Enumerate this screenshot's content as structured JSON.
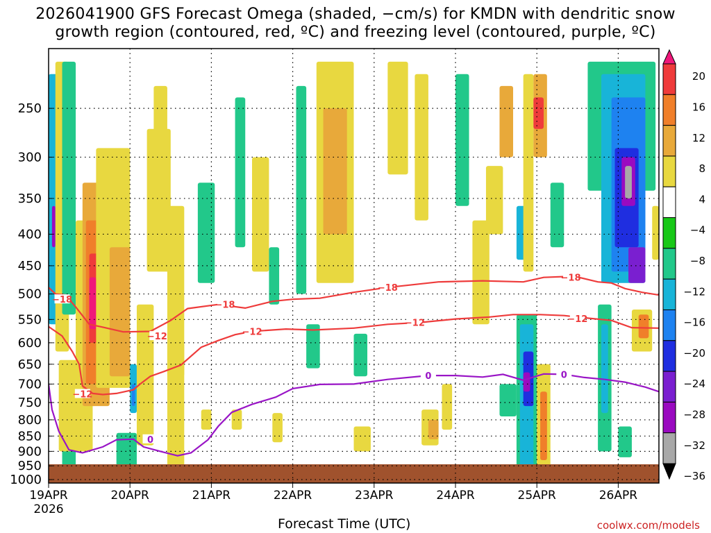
{
  "title_line1": "2026041900 GFS Forecast Omega (shaded, −cm/s) for KMDN with dendritic snow",
  "title_line2": "growth region (contoured, red, ºC) and freezing level (contoured, purple, ºC)",
  "x_axis_title": "Forecast Time (UTC)",
  "credit": "coolwx.com/models",
  "chart_data": {
    "type": "heatmap",
    "title": "2026041900 GFS Forecast Omega (shaded, −cm/s) for KMDN with dendritic snow growth region (contoured, red, ºC) and freezing level (contoured, purple, ºC)",
    "xlabel": "Forecast Time (UTC)",
    "ylabel": "",
    "x_ticks": [
      "19APR",
      "20APR",
      "21APR",
      "22APR",
      "23APR",
      "24APR",
      "25APR",
      "26APR"
    ],
    "x_year_label": "2026",
    "x_range_hours": [
      0,
      180
    ],
    "y_ticks_hPa": [
      250,
      300,
      350,
      400,
      450,
      500,
      550,
      600,
      650,
      700,
      750,
      800,
      850,
      900,
      950,
      1000
    ],
    "y_range_hPa": [
      200,
      1013
    ],
    "y_scale": "log",
    "grid": true,
    "colorbar": {
      "labels": [
        "20",
        "16",
        "12",
        "8",
        "4",
        "−4",
        "−8",
        "−12",
        "−16",
        "−20",
        "−24",
        "−28",
        "−32",
        "−36"
      ],
      "colors": [
        "#f0177a",
        "#ef3b3b",
        "#f07f2a",
        "#e8a93a",
        "#e8d840",
        "#ffffff",
        "#18c818",
        "#22c88a",
        "#18b4d8",
        "#1e82f0",
        "#1f2ee0",
        "#7a1fd0",
        "#9a0ac0",
        "#a8a8a8",
        "#000000"
      ]
    },
    "contour_labels": {
      "dendritic": [
        "−18",
        "−12"
      ],
      "freezing": [
        "0"
      ]
    },
    "contours": [
      {
        "name": "−18",
        "color": "#ee3b3b",
        "points": [
          [
            0,
            488
          ],
          [
            2,
            500
          ],
          [
            5,
            502
          ],
          [
            8,
            525
          ],
          [
            12,
            560
          ],
          [
            16,
            566
          ],
          [
            22,
            576
          ],
          [
            30,
            575
          ],
          [
            36,
            552
          ],
          [
            41,
            528
          ],
          [
            50,
            520
          ],
          [
            58,
            527
          ],
          [
            66,
            514
          ],
          [
            72,
            510
          ],
          [
            80,
            508
          ],
          [
            90,
            497
          ],
          [
            100,
            488
          ],
          [
            115,
            478
          ],
          [
            128,
            476
          ],
          [
            140,
            478
          ],
          [
            146,
            470
          ],
          [
            155,
            468
          ],
          [
            162,
            478
          ],
          [
            166,
            480
          ],
          [
            170,
            490
          ],
          [
            175,
            497
          ],
          [
            180,
            502
          ]
        ]
      },
      {
        "name": "−12",
        "color": "#ee3b3b",
        "points": [
          [
            0,
            565
          ],
          [
            4,
            585
          ],
          [
            7,
            620
          ],
          [
            9,
            650
          ],
          [
            10,
            705
          ],
          [
            13,
            725
          ],
          [
            16,
            728
          ],
          [
            20,
            725
          ],
          [
            25,
            715
          ],
          [
            27,
            700
          ],
          [
            30,
            680
          ],
          [
            34,
            668
          ],
          [
            39,
            652
          ],
          [
            45,
            610
          ],
          [
            50,
            595
          ],
          [
            55,
            582
          ],
          [
            60,
            575
          ],
          [
            70,
            570
          ],
          [
            78,
            572
          ],
          [
            90,
            568
          ],
          [
            100,
            560
          ],
          [
            110,
            556
          ],
          [
            120,
            549
          ],
          [
            130,
            545
          ],
          [
            137,
            540
          ],
          [
            145,
            540
          ],
          [
            152,
            542
          ],
          [
            160,
            548
          ],
          [
            166,
            552
          ],
          [
            172,
            567
          ],
          [
            180,
            568
          ]
        ]
      },
      {
        "name": "0",
        "color": "#9915c6",
        "points": [
          [
            0,
            700
          ],
          [
            1,
            770
          ],
          [
            3,
            835
          ],
          [
            6,
            895
          ],
          [
            10,
            905
          ],
          [
            16,
            885
          ],
          [
            20,
            862
          ],
          [
            25,
            860
          ],
          [
            28,
            885
          ],
          [
            33,
            900
          ],
          [
            38,
            915
          ],
          [
            42,
            905
          ],
          [
            47,
            862
          ],
          [
            50,
            820
          ],
          [
            54,
            778
          ],
          [
            60,
            755
          ],
          [
            67,
            735
          ],
          [
            72,
            712
          ],
          [
            80,
            701
          ],
          [
            90,
            700
          ],
          [
            100,
            688
          ],
          [
            112,
            678
          ],
          [
            120,
            678
          ],
          [
            128,
            682
          ],
          [
            134,
            675
          ],
          [
            140,
            690
          ],
          [
            146,
            674
          ],
          [
            152,
            675
          ],
          [
            158,
            683
          ],
          [
            164,
            688
          ],
          [
            170,
            695
          ],
          [
            176,
            708
          ],
          [
            180,
            720
          ]
        ]
      }
    ],
    "shaded_regions": [
      {
        "t": [
          0,
          3
        ],
        "p": [
          220,
          560
        ],
        "omega": -12
      },
      {
        "t": [
          1,
          2
        ],
        "p": [
          360,
          420
        ],
        "omega": -30
      },
      {
        "t": [
          2,
          6
        ],
        "p": [
          210,
          620
        ],
        "omega": 4
      },
      {
        "t": [
          4,
          8
        ],
        "p": [
          210,
          540
        ],
        "omega": -8
      },
      {
        "t": [
          4,
          8
        ],
        "p": [
          820,
          960
        ],
        "omega": -8
      },
      {
        "t": [
          3,
          13
        ],
        "p": [
          640,
          900
        ],
        "omega": 4
      },
      {
        "t": [
          8,
          14
        ],
        "p": [
          380,
          760
        ],
        "omega": 4
      },
      {
        "t": [
          10,
          18
        ],
        "p": [
          330,
          760
        ],
        "omega": 8
      },
      {
        "t": [
          11,
          16
        ],
        "p": [
          380,
          700
        ],
        "omega": 12
      },
      {
        "t": [
          12,
          15
        ],
        "p": [
          430,
          600
        ],
        "omega": 16
      },
      {
        "t": [
          12,
          14
        ],
        "p": [
          470,
          570
        ],
        "omega": 20
      },
      {
        "t": [
          14,
          24
        ],
        "p": [
          290,
          710
        ],
        "omega": 4
      },
      {
        "t": [
          18,
          24
        ],
        "p": [
          420,
          680
        ],
        "omega": 8
      },
      {
        "t": [
          20,
          26
        ],
        "p": [
          840,
          960
        ],
        "omega": -8
      },
      {
        "t": [
          24,
          26
        ],
        "p": [
          650,
          780
        ],
        "omega": -12
      },
      {
        "t": [
          24.5,
          25.5
        ],
        "p": [
          700,
          760
        ],
        "omega": -16
      },
      {
        "t": [
          26,
          31
        ],
        "p": [
          520,
          880
        ],
        "omega": 4
      },
      {
        "t": [
          29,
          36
        ],
        "p": [
          270,
          460
        ],
        "omega": 4
      },
      {
        "t": [
          31,
          35
        ],
        "p": [
          230,
          330
        ],
        "omega": 4
      },
      {
        "t": [
          35,
          40
        ],
        "p": [
          360,
          680
        ],
        "omega": 4
      },
      {
        "t": [
          35,
          40
        ],
        "p": [
          600,
          960
        ],
        "omega": 4
      },
      {
        "t": [
          44,
          49
        ],
        "p": [
          330,
          480
        ],
        "omega": -8
      },
      {
        "t": [
          45,
          48
        ],
        "p": [
          770,
          830
        ],
        "omega": 4
      },
      {
        "t": [
          55,
          58
        ],
        "p": [
          240,
          420
        ],
        "omega": -8
      },
      {
        "t": [
          54,
          57
        ],
        "p": [
          770,
          830
        ],
        "omega": 4
      },
      {
        "t": [
          60,
          65
        ],
        "p": [
          300,
          460
        ],
        "omega": 4
      },
      {
        "t": [
          65,
          68
        ],
        "p": [
          420,
          520
        ],
        "omega": -8
      },
      {
        "t": [
          66,
          69
        ],
        "p": [
          780,
          870
        ],
        "omega": 4
      },
      {
        "t": [
          73,
          76
        ],
        "p": [
          230,
          500
        ],
        "omega": -8
      },
      {
        "t": [
          76,
          80
        ],
        "p": [
          560,
          660
        ],
        "omega": -8
      },
      {
        "t": [
          79,
          90
        ],
        "p": [
          210,
          480
        ],
        "omega": 4
      },
      {
        "t": [
          81,
          88
        ],
        "p": [
          250,
          400
        ],
        "omega": 8
      },
      {
        "t": [
          90,
          94
        ],
        "p": [
          580,
          680
        ],
        "omega": -8
      },
      {
        "t": [
          90,
          95
        ],
        "p": [
          820,
          900
        ],
        "omega": 4
      },
      {
        "t": [
          100,
          106
        ],
        "p": [
          210,
          320
        ],
        "omega": 4
      },
      {
        "t": [
          108,
          112
        ],
        "p": [
          220,
          380
        ],
        "omega": 4
      },
      {
        "t": [
          110,
          115
        ],
        "p": [
          770,
          880
        ],
        "omega": 4
      },
      {
        "t": [
          112,
          115
        ],
        "p": [
          800,
          860
        ],
        "omega": 8
      },
      {
        "t": [
          116,
          119
        ],
        "p": [
          700,
          830
        ],
        "omega": 4
      },
      {
        "t": [
          120,
          124
        ],
        "p": [
          220,
          360
        ],
        "omega": -8
      },
      {
        "t": [
          125,
          130
        ],
        "p": [
          380,
          560
        ],
        "omega": 4
      },
      {
        "t": [
          129,
          134
        ],
        "p": [
          310,
          400
        ],
        "omega": 4
      },
      {
        "t": [
          133,
          137
        ],
        "p": [
          230,
          300
        ],
        "omega": 8
      },
      {
        "t": [
          133,
          138
        ],
        "p": [
          700,
          790
        ],
        "omega": -8
      },
      {
        "t": [
          138,
          144
        ],
        "p": [
          540,
          960
        ],
        "omega": -8
      },
      {
        "t": [
          139,
          143
        ],
        "p": [
          560,
          960
        ],
        "omega": -12
      },
      {
        "t": [
          140,
          143
        ],
        "p": [
          620,
          760
        ],
        "omega": -20
      },
      {
        "t": [
          140,
          142
        ],
        "p": [
          670,
          720
        ],
        "omega": -28
      },
      {
        "t": [
          138,
          142
        ],
        "p": [
          360,
          440
        ],
        "omega": -12
      },
      {
        "t": [
          140,
          143
        ],
        "p": [
          220,
          460
        ],
        "omega": 4
      },
      {
        "t": [
          143,
          147
        ],
        "p": [
          220,
          300
        ],
        "omega": 8
      },
      {
        "t": [
          143,
          146
        ],
        "p": [
          240,
          270
        ],
        "omega": 16
      },
      {
        "t": [
          144,
          148
        ],
        "p": [
          650,
          960
        ],
        "omega": 4
      },
      {
        "t": [
          145,
          147
        ],
        "p": [
          720,
          930
        ],
        "omega": 12
      },
      {
        "t": [
          148,
          152
        ],
        "p": [
          330,
          420
        ],
        "omega": -8
      },
      {
        "t": [
          159,
          179
        ],
        "p": [
          210,
          340
        ],
        "omega": -8
      },
      {
        "t": [
          163,
          176
        ],
        "p": [
          220,
          480
        ],
        "omega": -12
      },
      {
        "t": [
          166,
          176
        ],
        "p": [
          240,
          460
        ],
        "omega": -16
      },
      {
        "t": [
          167,
          174
        ],
        "p": [
          290,
          420
        ],
        "omega": -20
      },
      {
        "t": [
          169,
          173
        ],
        "p": [
          300,
          360
        ],
        "omega": -28
      },
      {
        "t": [
          170,
          172
        ],
        "p": [
          310,
          350
        ],
        "omega": -32
      },
      {
        "t": [
          171,
          176
        ],
        "p": [
          420,
          480
        ],
        "omega": -24
      },
      {
        "t": [
          162,
          166
        ],
        "p": [
          520,
          900
        ],
        "omega": -8
      },
      {
        "t": [
          163,
          165
        ],
        "p": [
          560,
          780
        ],
        "omega": -12
      },
      {
        "t": [
          168,
          172
        ],
        "p": [
          820,
          920
        ],
        "omega": -8
      },
      {
        "t": [
          172,
          178
        ],
        "p": [
          530,
          620
        ],
        "omega": 4
      },
      {
        "t": [
          174,
          177
        ],
        "p": [
          540,
          590
        ],
        "omega": 12
      },
      {
        "t": [
          178,
          180
        ],
        "p": [
          360,
          440
        ],
        "omega": 4
      }
    ]
  }
}
